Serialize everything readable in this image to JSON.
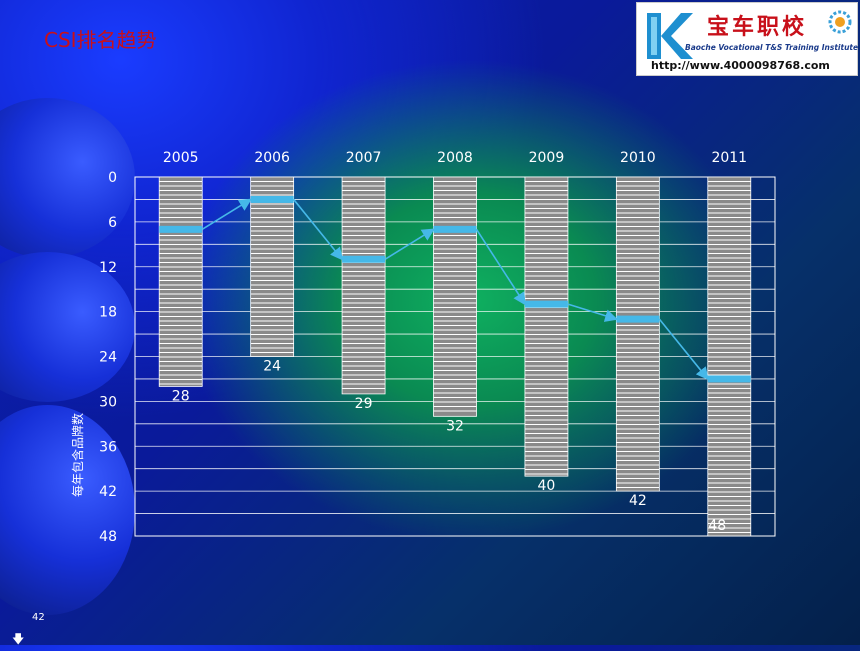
{
  "slide": {
    "title": "CSI排名趋势",
    "page_number": "42"
  },
  "logo": {
    "name_cn": "宝车职校",
    "name_en": "Baoche Vocational T&S Training Institute",
    "url": "http://www.4000098768.com"
  },
  "colors": {
    "title": "#c8101a",
    "bar_fill": "#8a8a8a",
    "bar_stripe": "#ffffff",
    "marker": "#45b8e8",
    "trend_line": "#45b8e8",
    "grid": "#ffffff"
  },
  "chart_data": {
    "type": "bar",
    "categories": [
      "2005",
      "2006",
      "2007",
      "2008",
      "2009",
      "2010",
      "2011"
    ],
    "series": [
      {
        "values": [
          28,
          24,
          29,
          32,
          40,
          42,
          48
        ]
      },
      {
        "type": "line",
        "values": [
          7,
          3,
          11,
          7,
          17,
          19,
          27
        ]
      }
    ],
    "ylabel": "每年包含品牌数",
    "ylim": [
      0,
      48
    ],
    "y_ticks": [
      0,
      6,
      12,
      18,
      24,
      30,
      36,
      42,
      48
    ],
    "y_inverted": true,
    "x_axis_position": "top",
    "grid": true,
    "data_labels": [
      "28",
      "24",
      "29",
      "32",
      "40",
      "42",
      "48"
    ]
  }
}
